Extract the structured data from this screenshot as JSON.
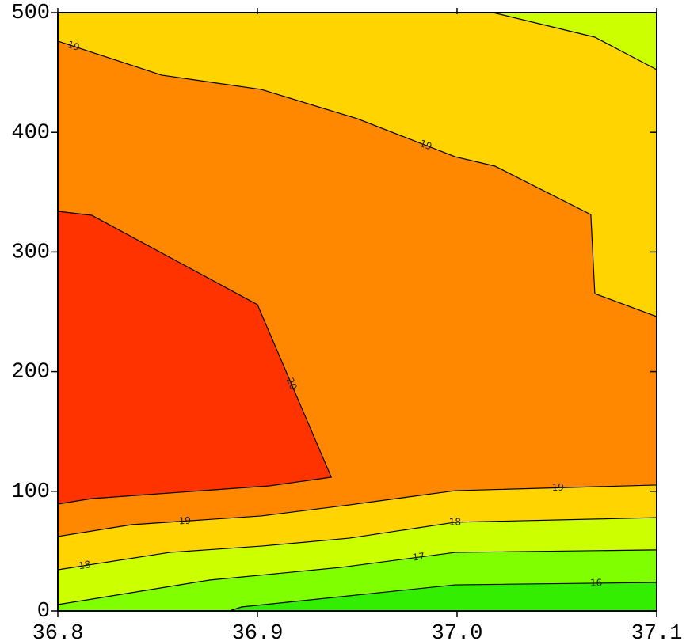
{
  "chart_data": {
    "type": "contour",
    "xlim": [
      36.8,
      37.1
    ],
    "ylim": [
      0,
      500
    ],
    "xticks": [
      36.8,
      36.9,
      {
        "value": 37,
        "label": "37.0"
      },
      37.1
    ],
    "yticks": [
      0,
      100,
      200,
      300,
      400,
      500
    ],
    "background_color": "#33ee00",
    "contours": [
      {
        "level": 16,
        "color": "#80ff00",
        "x": [
          36.886,
          36.892,
          36.999,
          37.1
        ],
        "y": [
          0,
          3.3,
          21.8,
          23.8
        ]
      },
      {
        "level": 17,
        "color": "#ccff00",
        "x": [
          36.8,
          36.876,
          36.942,
          36.999,
          37.1
        ],
        "y": [
          5.3,
          25.8,
          36.4,
          48.9,
          51.0
        ]
      },
      {
        "level": 18,
        "color": "#ffd400",
        "x": [
          36.8,
          36.856,
          36.902,
          36.946,
          36.999,
          37.1
        ],
        "y": [
          34.4,
          48.9,
          54.2,
          60.8,
          74.1,
          78.0
        ]
      },
      {
        "level": 18,
        "color": "#ffd400",
        "x": [
          37.1,
          37.069,
          37.018
        ],
        "y": [
          452.4,
          479.5,
          500
        ]
      },
      {
        "level": 19,
        "color": "#ff8800",
        "x": [
          36.8,
          36.837,
          36.902,
          36.946,
          36.999,
          37.1
        ],
        "y": [
          62.2,
          72.1,
          79.4,
          88.6,
          100.5,
          105.2
        ]
      },
      {
        "level": 19,
        "color": "#ff8800",
        "x": [
          37.1,
          37.069,
          37.067,
          37.019,
          36.999,
          36.95,
          36.902,
          36.852,
          36.8
        ],
        "y": [
          246.0,
          265.2,
          331.3,
          371.7,
          379.6,
          411.4,
          435.8,
          447.8,
          476.2
        ]
      },
      {
        "level": 20,
        "color": "#ff3300",
        "x": [
          36.8,
          36.817,
          36.9,
          36.937,
          36.906,
          36.817,
          36.8
        ],
        "y": [
          334.0,
          330.7,
          256.0,
          111.8,
          104.5,
          93.9,
          89.3
        ]
      }
    ]
  }
}
